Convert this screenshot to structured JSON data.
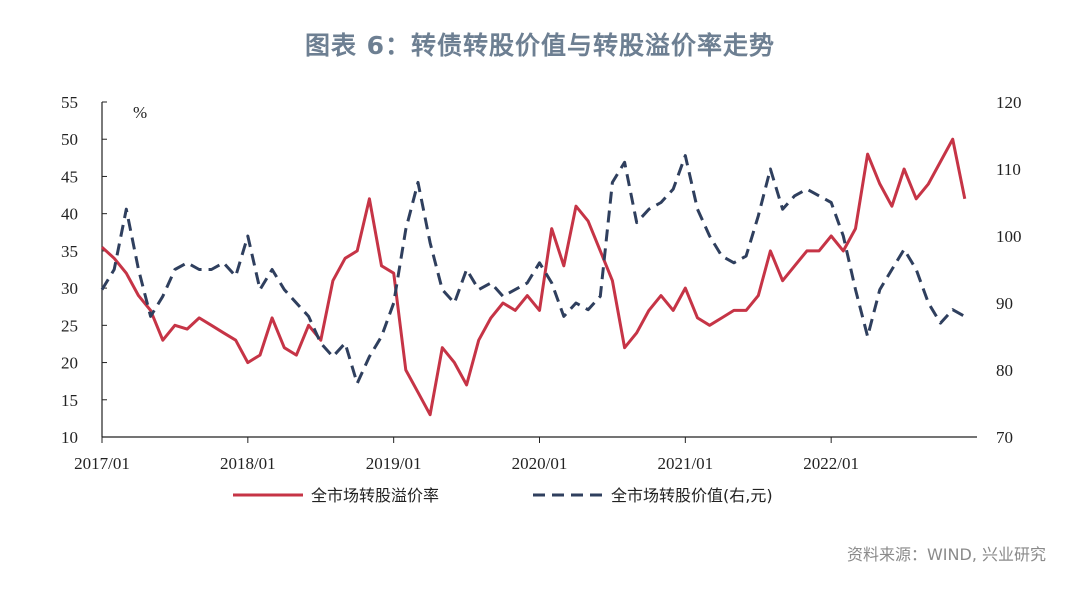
{
  "title": "图表 6：转债转股价值与转股溢价率走势",
  "source": "资料来源：WIND, 兴业研究",
  "colors": {
    "premium": "#c63446",
    "value": "#2f3f5e",
    "title": "#6d7f92"
  },
  "chart_data": {
    "type": "line",
    "x_tick_labels": [
      "2017/01",
      "2018/01",
      "2019/01",
      "2020/01",
      "2021/01",
      "2022/01"
    ],
    "x_range": [
      "2017/01",
      "2022/12"
    ],
    "left_axis": {
      "unit": "%",
      "min": 10,
      "max": 55,
      "ticks": [
        "10",
        "15",
        "20",
        "25",
        "30",
        "35",
        "40",
        "45",
        "50",
        "55"
      ]
    },
    "right_axis": {
      "min": 70,
      "max": 120,
      "ticks": [
        "70",
        "80",
        "90",
        "100",
        "110",
        "120"
      ]
    },
    "grid": false,
    "legend_position": "bottom",
    "series": [
      {
        "name": "全市场转股溢价率",
        "axis": "left",
        "style": "solid",
        "points": [
          [
            "2017/01",
            35.5
          ],
          [
            "2017/02",
            34
          ],
          [
            "2017/03",
            32
          ],
          [
            "2017/04",
            29
          ],
          [
            "2017/05",
            27
          ],
          [
            "2017/06",
            23
          ],
          [
            "2017/07",
            25
          ],
          [
            "2017/08",
            24.5
          ],
          [
            "2017/09",
            26
          ],
          [
            "2017/10",
            25
          ],
          [
            "2017/11",
            24
          ],
          [
            "2017/12",
            23
          ],
          [
            "2018/01",
            20
          ],
          [
            "2018/02",
            21
          ],
          [
            "2018/03",
            26
          ],
          [
            "2018/04",
            22
          ],
          [
            "2018/05",
            21
          ],
          [
            "2018/06",
            25
          ],
          [
            "2018/07",
            23
          ],
          [
            "2018/08",
            31
          ],
          [
            "2018/09",
            34
          ],
          [
            "2018/10",
            35
          ],
          [
            "2018/11",
            42
          ],
          [
            "2018/12",
            33
          ],
          [
            "2019/01",
            32
          ],
          [
            "2019/02",
            19
          ],
          [
            "2019/03",
            16
          ],
          [
            "2019/04",
            13
          ],
          [
            "2019/05",
            22
          ],
          [
            "2019/06",
            20
          ],
          [
            "2019/07",
            17
          ],
          [
            "2019/08",
            23
          ],
          [
            "2019/09",
            26
          ],
          [
            "2019/10",
            28
          ],
          [
            "2019/11",
            27
          ],
          [
            "2019/12",
            29
          ],
          [
            "2020/01",
            27
          ],
          [
            "2020/02",
            38
          ],
          [
            "2020/03",
            33
          ],
          [
            "2020/04",
            41
          ],
          [
            "2020/05",
            39
          ],
          [
            "2020/06",
            35
          ],
          [
            "2020/07",
            31
          ],
          [
            "2020/08",
            22
          ],
          [
            "2020/09",
            24
          ],
          [
            "2020/10",
            27
          ],
          [
            "2020/11",
            29
          ],
          [
            "2020/12",
            27
          ],
          [
            "2021/01",
            30
          ],
          [
            "2021/02",
            26
          ],
          [
            "2021/03",
            25
          ],
          [
            "2021/04",
            26
          ],
          [
            "2021/05",
            27
          ],
          [
            "2021/06",
            27
          ],
          [
            "2021/07",
            29
          ],
          [
            "2021/08",
            35
          ],
          [
            "2021/09",
            31
          ],
          [
            "2021/10",
            33
          ],
          [
            "2021/11",
            35
          ],
          [
            "2021/12",
            35
          ],
          [
            "2022/01",
            37
          ],
          [
            "2022/02",
            35
          ],
          [
            "2022/03",
            38
          ],
          [
            "2022/04",
            48
          ],
          [
            "2022/05",
            44
          ],
          [
            "2022/06",
            41
          ],
          [
            "2022/07",
            46
          ],
          [
            "2022/08",
            42
          ],
          [
            "2022/09",
            44
          ],
          [
            "2022/10",
            47
          ],
          [
            "2022/11",
            50
          ],
          [
            "2022/12",
            42
          ]
        ]
      },
      {
        "name": "全市场转股价值(右,元)",
        "axis": "right",
        "style": "dashed",
        "points": [
          [
            "2017/01",
            92
          ],
          [
            "2017/02",
            95
          ],
          [
            "2017/03",
            104
          ],
          [
            "2017/04",
            95
          ],
          [
            "2017/05",
            88
          ],
          [
            "2017/06",
            91
          ],
          [
            "2017/07",
            95
          ],
          [
            "2017/08",
            96
          ],
          [
            "2017/09",
            95
          ],
          [
            "2017/10",
            95
          ],
          [
            "2017/11",
            96
          ],
          [
            "2017/12",
            94
          ],
          [
            "2018/01",
            100
          ],
          [
            "2018/02",
            92
          ],
          [
            "2018/03",
            95
          ],
          [
            "2018/04",
            92
          ],
          [
            "2018/05",
            90
          ],
          [
            "2018/06",
            88
          ],
          [
            "2018/07",
            84
          ],
          [
            "2018/08",
            82
          ],
          [
            "2018/09",
            84
          ],
          [
            "2018/10",
            78
          ],
          [
            "2018/11",
            82
          ],
          [
            "2018/12",
            85
          ],
          [
            "2019/01",
            90
          ],
          [
            "2019/02",
            101
          ],
          [
            "2019/03",
            108
          ],
          [
            "2019/04",
            99
          ],
          [
            "2019/05",
            92
          ],
          [
            "2019/06",
            90
          ],
          [
            "2019/07",
            95
          ],
          [
            "2019/08",
            92
          ],
          [
            "2019/09",
            93
          ],
          [
            "2019/10",
            91
          ],
          [
            "2019/11",
            92
          ],
          [
            "2019/12",
            93
          ],
          [
            "2020/01",
            96
          ],
          [
            "2020/02",
            93
          ],
          [
            "2020/03",
            88
          ],
          [
            "2020/04",
            90
          ],
          [
            "2020/05",
            89
          ],
          [
            "2020/06",
            91
          ],
          [
            "2020/07",
            108
          ],
          [
            "2020/08",
            111
          ],
          [
            "2020/09",
            102
          ],
          [
            "2020/10",
            104
          ],
          [
            "2020/11",
            105
          ],
          [
            "2020/12",
            107
          ],
          [
            "2021/01",
            112
          ],
          [
            "2021/02",
            104
          ],
          [
            "2021/03",
            100
          ],
          [
            "2021/04",
            97
          ],
          [
            "2021/05",
            96
          ],
          [
            "2021/06",
            97
          ],
          [
            "2021/07",
            103
          ],
          [
            "2021/08",
            110
          ],
          [
            "2021/09",
            104
          ],
          [
            "2021/10",
            106
          ],
          [
            "2021/11",
            107
          ],
          [
            "2021/12",
            106
          ],
          [
            "2022/01",
            105
          ],
          [
            "2022/02",
            100
          ],
          [
            "2022/03",
            92
          ],
          [
            "2022/04",
            85
          ],
          [
            "2022/05",
            92
          ],
          [
            "2022/06",
            95
          ],
          [
            "2022/07",
            98
          ],
          [
            "2022/08",
            95
          ],
          [
            "2022/09",
            90
          ],
          [
            "2022/10",
            87
          ],
          [
            "2022/11",
            89
          ],
          [
            "2022/12",
            88
          ]
        ]
      }
    ]
  }
}
